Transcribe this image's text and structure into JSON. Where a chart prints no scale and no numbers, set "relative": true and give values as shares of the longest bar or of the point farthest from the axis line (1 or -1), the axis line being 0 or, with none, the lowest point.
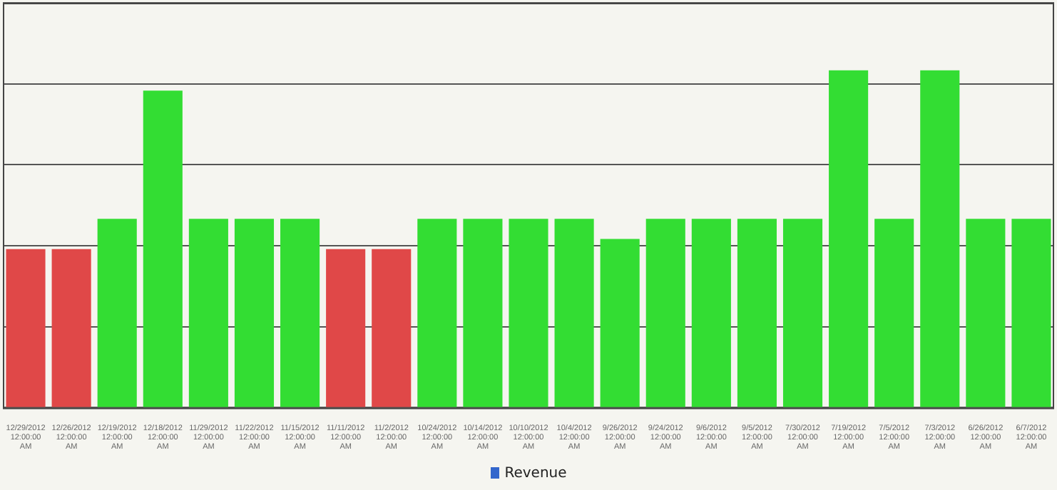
{
  "chart_data": {
    "type": "bar",
    "relative": true,
    "grid": "y",
    "legend": "bottom",
    "categories": [
      "12/29/2012 12:00:00 AM",
      "12/26/2012 12:00:00 AM",
      "12/19/2012 12:00:00 AM",
      "12/18/2012 12:00:00 AM",
      "11/29/2012 12:00:00 AM",
      "11/22/2012 12:00:00 AM",
      "11/15/2012 12:00:00 AM",
      "11/11/2012 12:00:00 AM",
      "11/2/2012 12:00:00 AM",
      "10/24/2012 12:00:00 AM",
      "10/14/2012 12:00:00 AM",
      "10/10/2012 12:00:00 AM",
      "10/4/2012 12:00:00 AM",
      "9/26/2012 12:00:00 AM",
      "9/24/2012 12:00:00 AM",
      "9/6/2012 12:00:00 AM",
      "9/5/2012 12:00:00 AM",
      "7/30/2012 12:00:00 AM",
      "7/19/2012 12:00:00 AM",
      "7/5/2012 12:00:00 AM",
      "7/3/2012 12:00:00 AM",
      "6/26/2012 12:00:00 AM",
      "6/7/2012 12:00:00 AM"
    ],
    "series": [
      {
        "name": "Revenue",
        "color": "#3366cc",
        "colors": [
          "#e04848",
          "#e04848",
          "#33dd33",
          "#33dd33",
          "#33dd33",
          "#33dd33",
          "#33dd33",
          "#e04848",
          "#e04848",
          "#33dd33",
          "#33dd33",
          "#33dd33",
          "#33dd33",
          "#33dd33",
          "#33dd33",
          "#33dd33",
          "#33dd33",
          "#33dd33",
          "#33dd33",
          "#33dd33",
          "#33dd33",
          "#33dd33",
          "#33dd33"
        ],
        "values": [
          0.47,
          0.47,
          0.56,
          0.94,
          0.56,
          0.56,
          0.56,
          0.47,
          0.47,
          0.56,
          0.56,
          0.56,
          0.56,
          0.5,
          0.56,
          0.56,
          0.56,
          0.56,
          1,
          0.56,
          1,
          0.56,
          0.56
        ]
      }
    ]
  }
}
